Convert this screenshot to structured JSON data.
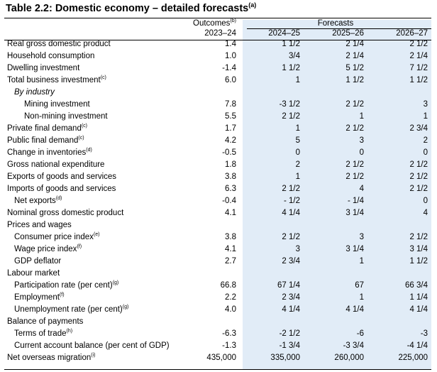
{
  "table": {
    "title": "Table 2.2: Domestic economy – detailed forecasts",
    "title_note": "(a)",
    "header": {
      "outcomes_label": "Outcomes",
      "outcomes_note": "(b)",
      "forecasts_label": "Forecasts",
      "years": [
        "2023–24",
        "2024–25",
        "2025–26",
        "2026–27"
      ]
    },
    "rows": [
      {
        "label": "Real gross domestic product",
        "note": "",
        "values": [
          "1.4",
          "1 1/2",
          "2 1/4",
          "2 1/2"
        ]
      },
      {
        "label": "Household consumption",
        "note": "",
        "values": [
          "1.0",
          "3/4",
          "2 1/4",
          "2 1/4"
        ]
      },
      {
        "label": "Dwelling investment",
        "note": "",
        "values": [
          "-1.4",
          "1 1/2",
          "5 1/2",
          "7 1/2"
        ]
      },
      {
        "label": "Total business investment",
        "note": "(c)",
        "values": [
          "6.0",
          "1",
          "1 1/2",
          "1 1/2"
        ]
      },
      {
        "label": "By industry",
        "note": "",
        "values": [
          "",
          "",
          "",
          ""
        ]
      },
      {
        "label": "Mining investment",
        "note": "",
        "values": [
          "7.8",
          "-3 1/2",
          "2 1/2",
          "3"
        ]
      },
      {
        "label": "Non-mining investment",
        "note": "",
        "values": [
          "5.5",
          "2 1/2",
          "1",
          "1"
        ]
      },
      {
        "label": "Private final demand",
        "note": "(c)",
        "values": [
          "1.7",
          "1",
          "2 1/2",
          "2 3/4"
        ]
      },
      {
        "label": "Public final demand",
        "note": "(c)",
        "values": [
          "4.2",
          "5",
          "3",
          "2"
        ]
      },
      {
        "label": "Change in inventories",
        "note": "(d)",
        "values": [
          "-0.5",
          "0",
          "0",
          "0"
        ]
      },
      {
        "label": "Gross national expenditure",
        "note": "",
        "values": [
          "1.8",
          "2",
          "2 1/2",
          "2 1/2"
        ]
      },
      {
        "label": "Exports of goods and services",
        "note": "",
        "values": [
          "3.8",
          "1",
          "2 1/2",
          "2 1/2"
        ]
      },
      {
        "label": "Imports of goods and services",
        "note": "",
        "values": [
          "6.3",
          "2 1/2",
          "4",
          "2 1/2"
        ]
      },
      {
        "label": "Net exports",
        "note": "(d)",
        "values": [
          "-0.4",
          "- 1/2",
          "- 1/4",
          "0"
        ]
      },
      {
        "label": "Nominal gross domestic product",
        "note": "",
        "values": [
          "4.1",
          "4 1/4",
          "3 1/4",
          "4"
        ]
      },
      {
        "label": "Prices and wages",
        "note": "",
        "values": [
          "",
          "",
          "",
          ""
        ]
      },
      {
        "label": "Consumer price index",
        "note": "(e)",
        "values": [
          "3.8",
          "2 1/2",
          "3",
          "2 1/2"
        ]
      },
      {
        "label": "Wage price index",
        "note": "(f)",
        "values": [
          "4.1",
          "3",
          "3 1/4",
          "3 1/4"
        ]
      },
      {
        "label": "GDP deflator",
        "note": "",
        "values": [
          "2.7",
          "2 3/4",
          "1",
          "1 1/2"
        ]
      },
      {
        "label": "Labour market",
        "note": "",
        "values": [
          "",
          "",
          "",
          ""
        ]
      },
      {
        "label": "Participation rate (per cent)",
        "note": "(g)",
        "values": [
          "66.8",
          "67 1/4",
          "67",
          "66 3/4"
        ]
      },
      {
        "label": "Employment",
        "note": "(f)",
        "values": [
          "2.2",
          "2 3/4",
          "1",
          "1 1/4"
        ]
      },
      {
        "label": "Unemployment rate (per cent)",
        "note": "(g)",
        "values": [
          "4.0",
          "4 1/4",
          "4 1/4",
          "4 1/4"
        ]
      },
      {
        "label": "Balance of payments",
        "note": "",
        "values": [
          "",
          "",
          "",
          ""
        ]
      },
      {
        "label": "Terms of trade",
        "note": "(h)",
        "values": [
          "-6.3",
          "-2 1/2",
          "-6",
          "-3"
        ]
      },
      {
        "label": "Current account balance (per cent of GDP)",
        "note": "",
        "values": [
          "-1.3",
          "-1 3/4",
          "-3 3/4",
          "-4 1/4"
        ]
      },
      {
        "label": "Net overseas migration",
        "note": "(i)",
        "values": [
          "435,000",
          "335,000",
          "260,000",
          "225,000"
        ]
      }
    ]
  }
}
